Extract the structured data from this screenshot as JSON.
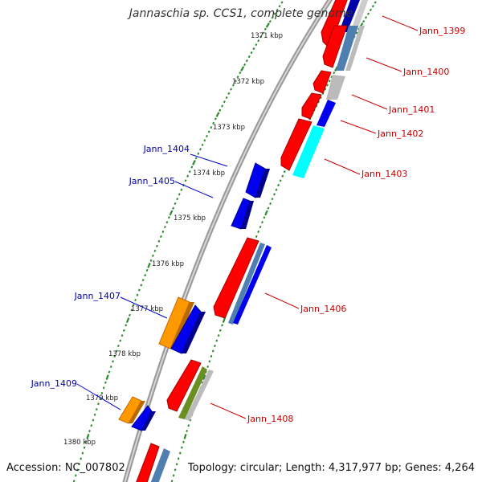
{
  "title": "Jannaschia sp. CCS1, complete genome",
  "footer": {
    "accession": "Accession: NC_007802",
    "summary": "Topology: circular; Length: 4,317,977 bp; Genes: 4,264"
  },
  "colors": {
    "backbone": "#888888",
    "tick": "#2a8a2a",
    "label_left": "#0000aa",
    "label_right": "#cc0000",
    "gene_red": "#ff0000",
    "gene_blue": "#0000ff",
    "gene_steel": "#4f7fb0",
    "gene_gray": "#bbbbbb",
    "gene_navy": "#000088",
    "gene_cyan": "#00ffff",
    "gene_orange": "#ff9900",
    "gene_olive": "#6b8e23"
  },
  "kbp_labels": [
    "1371 kbp",
    "1372 kbp",
    "1373 kbp",
    "1374 kbp",
    "1375 kbp",
    "1376 kbp",
    "1377 kbp",
    "1378 kbp",
    "1379 kbp",
    "1380 kbp"
  ],
  "gene_labels_left": [
    "Jann_1404",
    "Jann_1405",
    "Jann_1407",
    "Jann_1409"
  ],
  "gene_labels_right": [
    "Jann_1399",
    "Jann_1400",
    "Jann_1401",
    "Jann_1402",
    "Jann_1403",
    "Jann_1406",
    "Jann_1408"
  ]
}
